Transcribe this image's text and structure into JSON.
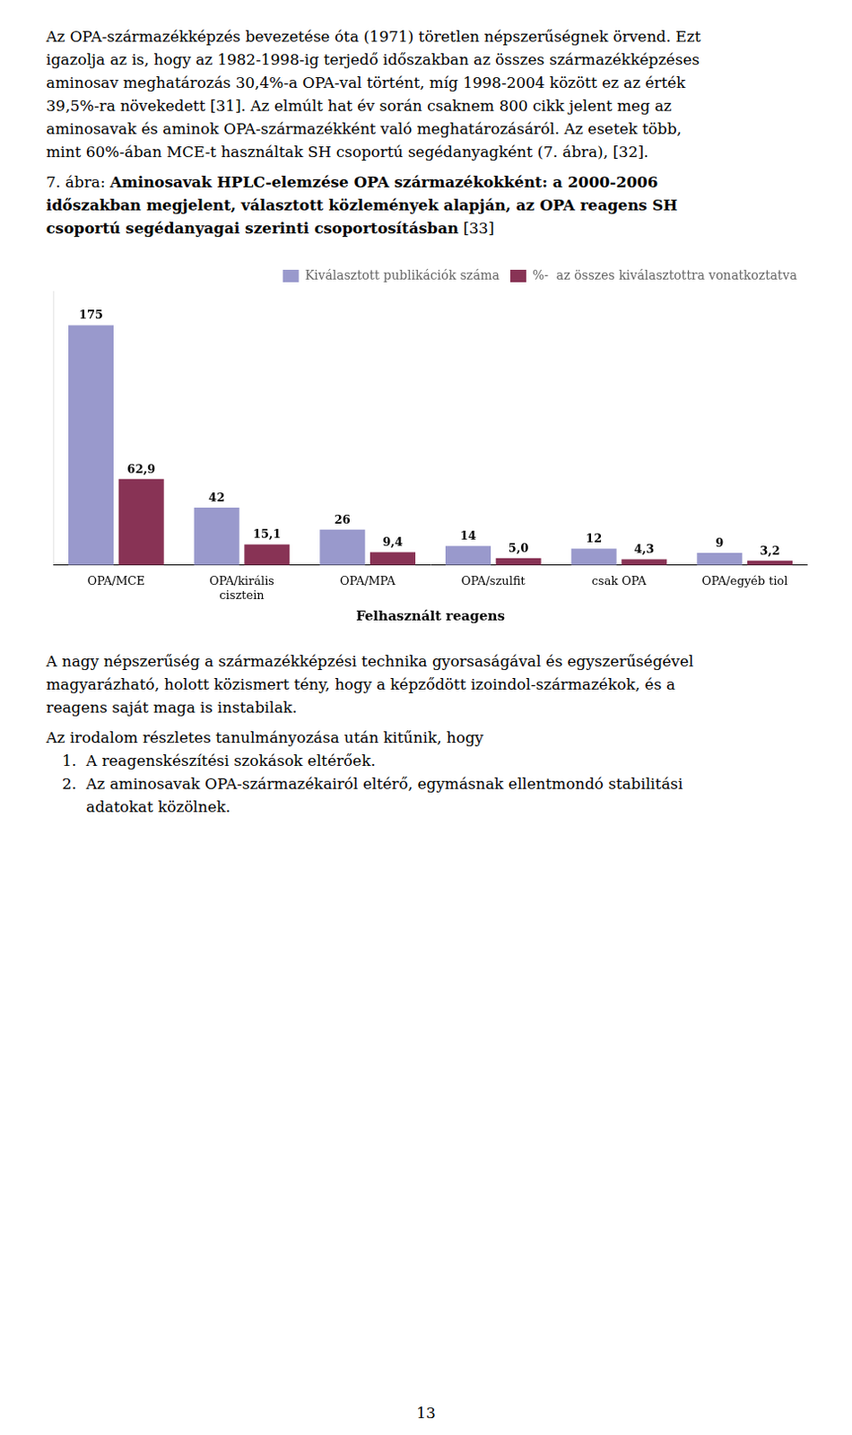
{
  "text_above": [
    "Az OPA-származékképzés bevezetése óta (1971) töretlen népszerűségnek örvend. Ezt",
    "igazolja az is, hogy az 1982-1998-ig terjedő időszakban az összes származékképzéses",
    "aminosav meghatározás 30,4%-a OPA-val történt, míg 1998-2004 között ez az érték",
    "39,5%-ra növekedett [31]. Az elmúlt hat év során csaknem 800 cikk jelent meg az",
    "aminosavak és aminok OPA-származékként való meghatározásáról. Az esetek több,",
    "mint 60%-ában MCE-t használtak SH csoportú segédanyagként (7. ábra), [32]."
  ],
  "caption": {
    "prefix": "7. ábra: ",
    "bold_lines": [
      "Aminosavak HPLC-elemzése OPA származékokként: a 2000-2006",
      "időszakban megjelent, választott közlemények alapján, az OPA reagens SH",
      "csoportú segédanyagai szerinti csoportosításban"
    ],
    "ref": " [33]"
  },
  "chart_data": {
    "type": "bar",
    "categories": [
      "OPA/MCE",
      "OPA/királis\ncisztein",
      "OPA/MPA",
      "OPA/szulfit",
      "csak OPA",
      "OPA/egyéb tiol"
    ],
    "series": [
      {
        "name": "Kiválasztott publikációk száma",
        "color": "#9999CC",
        "values": [
          175,
          42,
          26,
          14,
          12,
          9
        ]
      },
      {
        "name": "%-  az összes kiválasztottra vonatkoztatva",
        "color": "#883355",
        "values": [
          62.9,
          15.1,
          9.4,
          5.0,
          4.3,
          3.2
        ],
        "value_labels": [
          "62,9",
          "15,1",
          "9,4",
          "5,0",
          "4,3",
          "3,2"
        ]
      }
    ],
    "xlabel": "Felhasznált reagens",
    "ylim": [
      0,
      200
    ],
    "grid": false,
    "legend": "upper right",
    "data_labels": true,
    "tick_labels": "x"
  },
  "text_below": [
    "A nagy népszerűség a származékképzési technika gyorsaságával és egyszerűségével",
    "magyarázható, holott közismert tény, hogy a képződött izoindol-származékok, és a",
    "reagens saját maga is instabilak."
  ],
  "intro_line": "Az irodalom részletes tanulmányozása után kitűnik, hogy",
  "list": [
    {
      "number": "1.",
      "lines": [
        "A reagenskészítési szokások eltérőek."
      ]
    },
    {
      "number": "2.",
      "lines": [
        "Az aminosavak OPA-származékairól eltérő, egymásnak ellentmondó stabilitási",
        "adatokat közölnek."
      ]
    }
  ],
  "page_number": "13"
}
